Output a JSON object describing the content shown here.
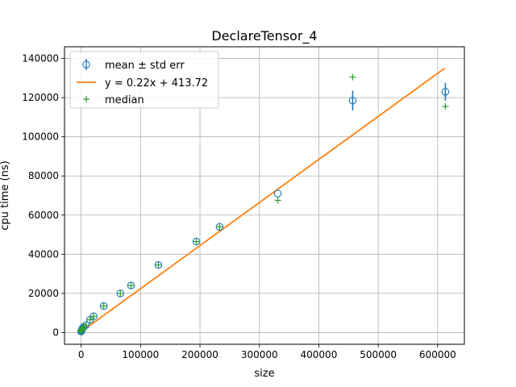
{
  "chart_data": {
    "type": "scatter",
    "title": "DeclareTensor_4",
    "xlabel": "size",
    "ylabel": "cpu time (ns)",
    "xlim": [
      -28000,
      645000
    ],
    "ylim": [
      -6000,
      146000
    ],
    "xticks": [
      0,
      100000,
      200000,
      300000,
      400000,
      500000,
      600000
    ],
    "yticks": [
      0,
      20000,
      40000,
      60000,
      80000,
      100000,
      120000,
      140000
    ],
    "grid": true,
    "legend_position": "top-left",
    "fit": {
      "name": "y = 0.22x + 413.72",
      "slope": 0.22,
      "intercept": 413.72,
      "x_range": [
        0,
        612000
      ],
      "color": "#ff7f0e"
    },
    "series": [
      {
        "name": "mean ± std err",
        "marker": "open-circle",
        "color": "#1f77b4",
        "x": [
          0,
          500,
          1000,
          1500,
          2000,
          4000,
          8000,
          15000,
          21000,
          38000,
          66000,
          84000,
          130000,
          194000,
          233000,
          331000,
          457000,
          613000
        ],
        "values": [
          500,
          800,
          1200,
          1600,
          2000,
          2800,
          3800,
          6500,
          8300,
          13500,
          20000,
          24000,
          34500,
          46500,
          54000,
          71000,
          118500,
          123000
        ],
        "err": [
          0,
          0,
          0,
          0,
          0,
          0,
          0,
          0,
          0,
          0,
          0,
          0,
          0,
          0,
          0,
          0,
          5000,
          4500
        ]
      },
      {
        "name": "median",
        "marker": "plus",
        "color": "#2ca02c",
        "x": [
          0,
          500,
          1000,
          1500,
          2000,
          4000,
          8000,
          15000,
          21000,
          38000,
          66000,
          84000,
          130000,
          194000,
          233000,
          331000,
          457000,
          613000
        ],
        "values": [
          500,
          800,
          1200,
          1600,
          2000,
          2800,
          3800,
          6500,
          8300,
          13500,
          20000,
          24000,
          34500,
          46500,
          54000,
          67500,
          130500,
          115500
        ]
      }
    ]
  }
}
